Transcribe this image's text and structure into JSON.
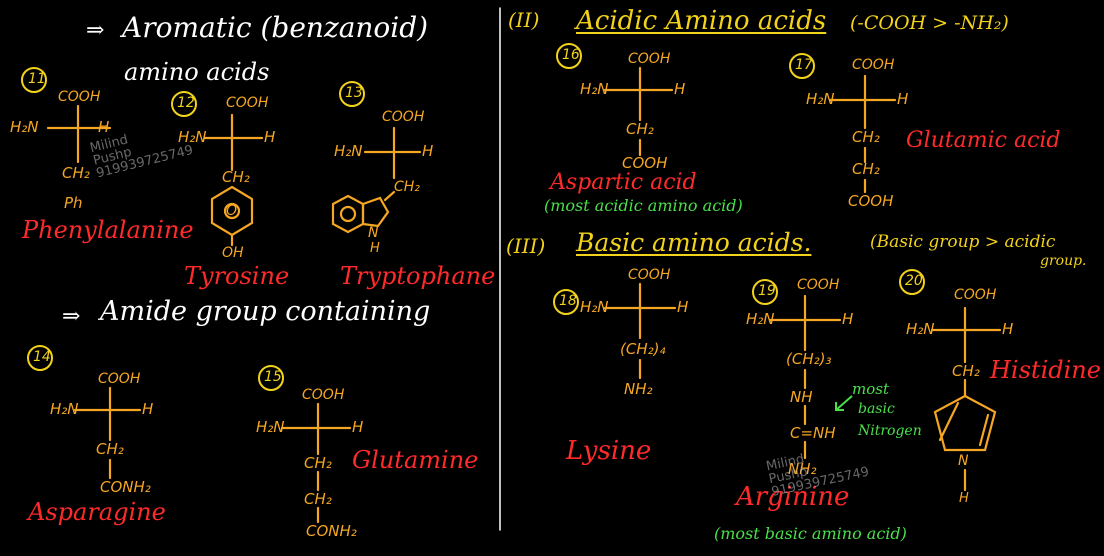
{
  "left": {
    "arrow1": "⇒",
    "heading_line1": "Aromatic (benzanoid)",
    "heading_line2": "amino acids",
    "arrow2": "⇒",
    "amide_heading": "Amide group containing"
  },
  "right": {
    "acidic_heading_num": "(II)",
    "acidic_heading": "Acidic Amino acids",
    "acidic_condition": "(-COOH > -NH₂)",
    "basic_heading_num": "(III)",
    "basic_heading": "Basic amino acids.",
    "basic_condition_line1": "(Basic group > acidic",
    "basic_condition_line2": "group."
  },
  "molecules": [
    {
      "num": "11",
      "name": "Phenylalanine",
      "cooh": "COOH",
      "nh2": "H₂N",
      "h": "H",
      "chain": [
        "CH₂",
        "Ph"
      ]
    },
    {
      "num": "12",
      "name": "Tyrosine",
      "cooh": "COOH",
      "nh2": "H₂N",
      "h": "H",
      "chain": [
        "CH₂"
      ],
      "ring_sub": "OH",
      "ring_o": "O"
    },
    {
      "num": "13",
      "name": "Tryptophane",
      "cooh": "COOH",
      "nh2": "H₂N",
      "h": "H",
      "chain": [
        "CH₂"
      ],
      "ring_n": "N",
      "ring_nh": "H"
    },
    {
      "num": "14",
      "name": "Asparagine",
      "cooh": "COOH",
      "nh2": "H₂N",
      "h": "H",
      "chain": [
        "CH₂",
        "CONH₂"
      ]
    },
    {
      "num": "15",
      "name": "Glutamine",
      "cooh": "COOH",
      "nh2": "H₂N",
      "h": "H",
      "chain": [
        "CH₂",
        "CH₂",
        "CONH₂"
      ]
    },
    {
      "num": "16",
      "name": "Aspartic acid",
      "note": "(most acidic amino acid)",
      "cooh": "COOH",
      "nh2": "H₂N",
      "h": "H",
      "chain": [
        "CH₂",
        "COOH"
      ]
    },
    {
      "num": "17",
      "name": "Glutamic acid",
      "cooh": "COOH",
      "nh2": "H₂N",
      "h": "H",
      "chain": [
        "CH₂",
        "CH₂",
        "COOH"
      ]
    },
    {
      "num": "18",
      "name": "Lysine",
      "cooh": "COOH",
      "nh2": "H₂N",
      "h": "H",
      "chain": [
        "(CH₂)₄",
        "NH₂"
      ]
    },
    {
      "num": "19",
      "name": "Arginine",
      "note": "(most basic amino acid)",
      "cooh": "COOH",
      "nh2": "H₂N",
      "h": "H",
      "chain": [
        "(CH₂)₃",
        "NH",
        "C=NH",
        "NH₂"
      ],
      "annotation": [
        "most",
        "basic",
        "Nitrogen"
      ]
    },
    {
      "num": "20",
      "name": "Histidine",
      "cooh": "COOH",
      "nh2": "H₂N",
      "h": "H",
      "chain": [
        "CH₂"
      ],
      "ring_n": "N",
      "ring_nh": "H"
    }
  ],
  "watermark": {
    "line1": "Milind",
    "line2": "Pushp",
    "line3": "919939725749"
  }
}
